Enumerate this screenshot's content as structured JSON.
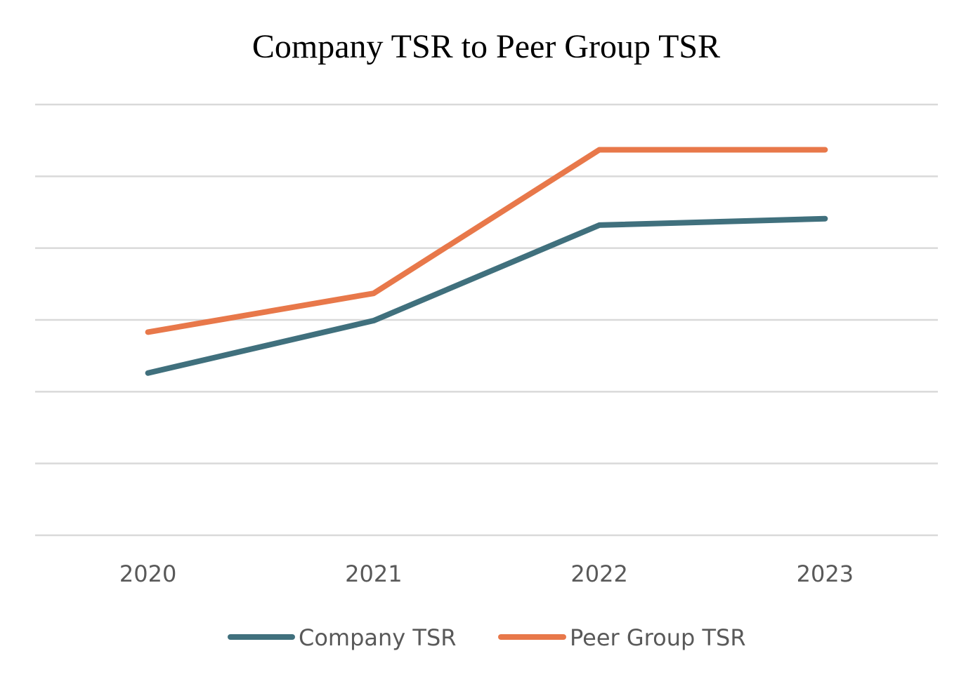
{
  "chart_data": {
    "type": "line",
    "title": "Company TSR to Peer Group TSR",
    "xlabel": "",
    "ylabel": "",
    "categories": [
      "2020",
      "2021",
      "2022",
      "2023"
    ],
    "ylim": [
      0,
      6
    ],
    "y_tick_labels_shown": false,
    "grid": true,
    "legend_position": "bottom",
    "series": [
      {
        "name": "Company TSR",
        "color": "#40707d",
        "values": [
          2.26,
          2.99,
          4.32,
          4.41
        ]
      },
      {
        "name": "Peer Group TSR",
        "color": "#e8784a",
        "values": [
          2.83,
          3.37,
          5.37,
          5.37
        ]
      }
    ],
    "gridline_color": "#d9d9d9"
  }
}
